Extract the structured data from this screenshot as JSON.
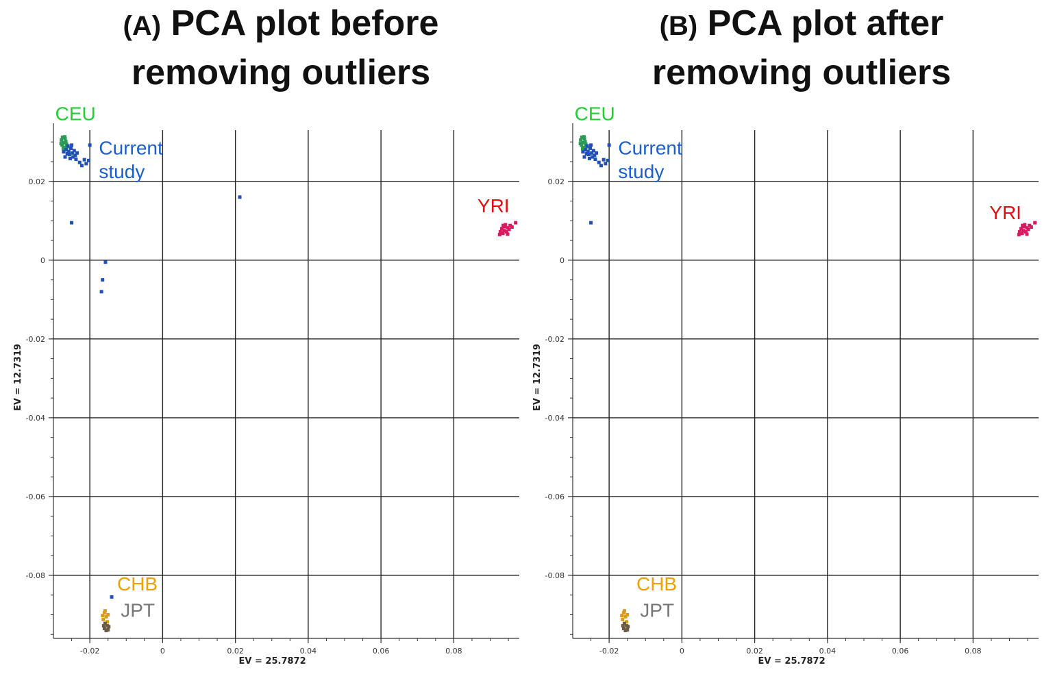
{
  "panels": [
    {
      "id": "a",
      "tag": "(A)",
      "title_line1": "PCA plot before",
      "title_line2": "removing outliers"
    },
    {
      "id": "b",
      "tag": "(B)",
      "title_line1": "PCA plot after",
      "title_line2": "removing outliers"
    }
  ],
  "colors": {
    "CEU": "#22cc33",
    "Current study": "#1a5fcc",
    "YRI": "#dd1111",
    "CHB": "#f0a000",
    "JPT": "#777777",
    "CEU_points": "#2a9a55",
    "Current_points": "#2050b8",
    "YRI_points": "#d81b60",
    "CHB_points": "#d99a20",
    "JPT_points": "#6b5a45"
  },
  "chart_data": [
    {
      "type": "scatter",
      "panel": "a",
      "xlabel": "EV = 25.7872",
      "ylabel": "EV = 12.7319",
      "xlim": [
        -0.03,
        0.098
      ],
      "ylim": [
        -0.096,
        0.033
      ],
      "xticks": [
        -0.02,
        0,
        0.02,
        0.04,
        0.06,
        0.08
      ],
      "xtick_labels": [
        "-0.02",
        "0",
        "0.02",
        "0.04",
        "0.06",
        "0.08"
      ],
      "yticks": [
        0.02,
        0,
        -0.02,
        -0.04,
        -0.06,
        -0.08
      ],
      "ytick_labels": [
        "0.02",
        "0",
        "-0.02",
        "-0.04",
        "-0.06",
        "-0.08"
      ],
      "grid": true,
      "annotations": [
        {
          "text": "CEU",
          "group": "CEU",
          "x": -0.0295,
          "y": 0.0355
        },
        {
          "text": "Current",
          "group": "Current study",
          "x": -0.0175,
          "y": 0.0268
        },
        {
          "text": "study",
          "group": "Current study",
          "x": -0.0175,
          "y": 0.0208
        },
        {
          "text": "YRI",
          "group": "YRI",
          "x": 0.0865,
          "y": 0.0121
        },
        {
          "text": "CHB",
          "group": "CHB",
          "x": -0.0125,
          "y": -0.0838
        },
        {
          "text": "JPT",
          "group": "JPT",
          "x": -0.0115,
          "y": -0.0905
        }
      ],
      "series": [
        {
          "name": "CEU",
          "points": [
            [
              -0.0275,
              0.0312
            ],
            [
              -0.0278,
              0.0305
            ],
            [
              -0.0272,
              0.0298
            ],
            [
              -0.0268,
              0.0308
            ],
            [
              -0.0276,
              0.0292
            ],
            [
              -0.027,
              0.0286
            ],
            [
              -0.0266,
              0.0301
            ],
            [
              -0.0279,
              0.0296
            ],
            [
              -0.0273,
              0.0283
            ],
            [
              -0.0264,
              0.0294
            ],
            [
              -0.0269,
              0.0313
            ],
            [
              -0.0261,
              0.0288
            ]
          ]
        },
        {
          "name": "Current study",
          "points": [
            [
              -0.0265,
              0.028
            ],
            [
              -0.0258,
              0.0276
            ],
            [
              -0.0262,
              0.027
            ],
            [
              -0.0252,
              0.0284
            ],
            [
              -0.0256,
              0.0268
            ],
            [
              -0.0248,
              0.0272
            ],
            [
              -0.0268,
              0.0262
            ],
            [
              -0.0246,
              0.0262
            ],
            [
              -0.0254,
              0.0258
            ],
            [
              -0.024,
              0.0266
            ],
            [
              -0.026,
              0.029
            ],
            [
              -0.025,
              0.0292
            ],
            [
              -0.0243,
              0.0278
            ],
            [
              -0.0235,
              0.0272
            ],
            [
              -0.0272,
              0.0275
            ],
            [
              -0.0238,
              0.0256
            ],
            [
              -0.0228,
              0.0248
            ],
            [
              -0.0215,
              0.0255
            ],
            [
              -0.0203,
              0.0253
            ],
            [
              -0.0222,
              0.024
            ],
            [
              -0.021,
              0.0245
            ],
            [
              -0.02,
              0.0292
            ],
            [
              -0.025,
              0.0095
            ],
            [
              0.0212,
              0.016
            ],
            [
              -0.0157,
              -0.0005
            ],
            [
              -0.0165,
              -0.005
            ],
            [
              -0.0168,
              -0.008
            ],
            [
              -0.014,
              -0.0855
            ]
          ]
        },
        {
          "name": "YRI",
          "points": [
            [
              0.0932,
              0.008
            ],
            [
              0.094,
              0.0085
            ],
            [
              0.0948,
              0.0082
            ],
            [
              0.0938,
              0.0075
            ],
            [
              0.0945,
              0.0072
            ],
            [
              0.0952,
              0.0078
            ],
            [
              0.0928,
              0.0072
            ],
            [
              0.0935,
              0.0068
            ],
            [
              0.0955,
              0.0088
            ],
            [
              0.0942,
              0.009
            ],
            [
              0.096,
              0.0084
            ],
            [
              0.0926,
              0.0065
            ],
            [
              0.0948,
              0.0066
            ],
            [
              0.0936,
              0.0088
            ],
            [
              0.097,
              0.0095
            ]
          ]
        },
        {
          "name": "CHB",
          "points": [
            [
              -0.016,
              -0.0895
            ],
            [
              -0.0155,
              -0.0905
            ],
            [
              -0.0163,
              -0.0912
            ],
            [
              -0.015,
              -0.09
            ],
            [
              -0.0158,
              -0.089
            ],
            [
              -0.0152,
              -0.0918
            ],
            [
              -0.0165,
              -0.0902
            ]
          ]
        },
        {
          "name": "JPT",
          "points": [
            [
              -0.0158,
              -0.0922
            ],
            [
              -0.0152,
              -0.0928
            ],
            [
              -0.016,
              -0.0935
            ],
            [
              -0.0148,
              -0.093
            ],
            [
              -0.0155,
              -0.094
            ],
            [
              -0.0162,
              -0.0928
            ],
            [
              -0.015,
              -0.0938
            ]
          ]
        }
      ]
    },
    {
      "type": "scatter",
      "panel": "b",
      "xlabel": "EV = 25.7872",
      "ylabel": "EV = 12.7319",
      "xlim": [
        -0.03,
        0.098
      ],
      "ylim": [
        -0.096,
        0.033
      ],
      "xticks": [
        -0.02,
        0,
        0.02,
        0.04,
        0.06,
        0.08
      ],
      "xtick_labels": [
        "-0.02",
        "0",
        "0.02",
        "0.04",
        "0.06",
        "0.08"
      ],
      "yticks": [
        0.02,
        0,
        -0.02,
        -0.04,
        -0.06,
        -0.08
      ],
      "ytick_labels": [
        "0.02",
        "0",
        "-0.02",
        "-0.04",
        "-0.06",
        "-0.08"
      ],
      "grid": true,
      "annotations": [
        {
          "text": "CEU",
          "group": "CEU",
          "x": -0.0295,
          "y": 0.0355
        },
        {
          "text": "Current",
          "group": "Current study",
          "x": -0.0175,
          "y": 0.0268
        },
        {
          "text": "study",
          "group": "Current study",
          "x": -0.0175,
          "y": 0.0208
        },
        {
          "text": "YRI",
          "group": "YRI",
          "x": 0.0845,
          "y": 0.0104
        },
        {
          "text": "CHB",
          "group": "CHB",
          "x": -0.0125,
          "y": -0.0838
        },
        {
          "text": "JPT",
          "group": "JPT",
          "x": -0.0115,
          "y": -0.0905
        }
      ],
      "series": [
        {
          "name": "CEU",
          "points": [
            [
              -0.0275,
              0.0312
            ],
            [
              -0.0278,
              0.0305
            ],
            [
              -0.0272,
              0.0298
            ],
            [
              -0.0268,
              0.0308
            ],
            [
              -0.0276,
              0.0292
            ],
            [
              -0.027,
              0.0286
            ],
            [
              -0.0266,
              0.0301
            ],
            [
              -0.0279,
              0.0296
            ],
            [
              -0.0273,
              0.0283
            ],
            [
              -0.0264,
              0.0294
            ],
            [
              -0.0269,
              0.0313
            ],
            [
              -0.0261,
              0.0288
            ]
          ]
        },
        {
          "name": "Current study",
          "points": [
            [
              -0.0265,
              0.028
            ],
            [
              -0.0258,
              0.0276
            ],
            [
              -0.0262,
              0.027
            ],
            [
              -0.0252,
              0.0284
            ],
            [
              -0.0256,
              0.0268
            ],
            [
              -0.0248,
              0.0272
            ],
            [
              -0.0268,
              0.0262
            ],
            [
              -0.0246,
              0.0262
            ],
            [
              -0.0254,
              0.0258
            ],
            [
              -0.024,
              0.0266
            ],
            [
              -0.026,
              0.029
            ],
            [
              -0.025,
              0.0292
            ],
            [
              -0.0243,
              0.0278
            ],
            [
              -0.0235,
              0.0272
            ],
            [
              -0.0272,
              0.0275
            ],
            [
              -0.0238,
              0.0256
            ],
            [
              -0.0228,
              0.0248
            ],
            [
              -0.0215,
              0.0255
            ],
            [
              -0.0203,
              0.0253
            ],
            [
              -0.0222,
              0.024
            ],
            [
              -0.021,
              0.0245
            ],
            [
              -0.02,
              0.0292
            ],
            [
              -0.025,
              0.0095
            ]
          ]
        },
        {
          "name": "YRI",
          "points": [
            [
              0.0932,
              0.008
            ],
            [
              0.094,
              0.0085
            ],
            [
              0.0948,
              0.0082
            ],
            [
              0.0938,
              0.0075
            ],
            [
              0.0945,
              0.0072
            ],
            [
              0.0952,
              0.0078
            ],
            [
              0.0928,
              0.0072
            ],
            [
              0.0935,
              0.0068
            ],
            [
              0.0955,
              0.0088
            ],
            [
              0.0942,
              0.009
            ],
            [
              0.096,
              0.0084
            ],
            [
              0.0926,
              0.0065
            ],
            [
              0.0948,
              0.0066
            ],
            [
              0.0936,
              0.0088
            ],
            [
              0.097,
              0.0095
            ]
          ]
        },
        {
          "name": "CHB",
          "points": [
            [
              -0.016,
              -0.0895
            ],
            [
              -0.0155,
              -0.0905
            ],
            [
              -0.0163,
              -0.0912
            ],
            [
              -0.015,
              -0.09
            ],
            [
              -0.0158,
              -0.089
            ],
            [
              -0.0152,
              -0.0918
            ],
            [
              -0.0165,
              -0.0902
            ]
          ]
        },
        {
          "name": "JPT",
          "points": [
            [
              -0.0158,
              -0.0922
            ],
            [
              -0.0152,
              -0.0928
            ],
            [
              -0.016,
              -0.0935
            ],
            [
              -0.0148,
              -0.093
            ],
            [
              -0.0155,
              -0.094
            ],
            [
              -0.0162,
              -0.0928
            ],
            [
              -0.015,
              -0.0938
            ]
          ]
        }
      ]
    }
  ]
}
